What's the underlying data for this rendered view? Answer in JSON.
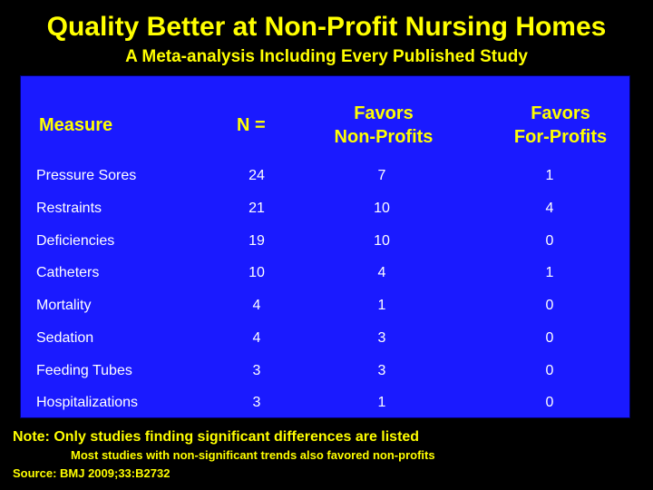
{
  "title": "Quality Better at Non-Profit Nursing Homes",
  "subtitle": "A Meta-analysis Including Every Published Study",
  "table": {
    "headers": {
      "measure": "Measure",
      "n": "N =",
      "non_profits_line1": "Favors",
      "non_profits_line2": "Non-Profits",
      "for_profits_line1": "Favors",
      "for_profits_line2": "For-Profits"
    },
    "rows": [
      {
        "measure": "Pressure Sores",
        "n": "24",
        "non_profits": "7",
        "for_profits": "1"
      },
      {
        "measure": "Restraints",
        "n": "21",
        "non_profits": "10",
        "for_profits": "4"
      },
      {
        "measure": "Deficiencies",
        "n": "19",
        "non_profits": "10",
        "for_profits": "0"
      },
      {
        "measure": "Catheters",
        "n": "10",
        "non_profits": "4",
        "for_profits": "1"
      },
      {
        "measure": "Mortality",
        "n": "4",
        "non_profits": "1",
        "for_profits": "0"
      },
      {
        "measure": "Sedation",
        "n": "4",
        "non_profits": "3",
        "for_profits": "0"
      },
      {
        "measure": "Feeding Tubes",
        "n": "3",
        "non_profits": "3",
        "for_profits": "0"
      },
      {
        "measure": "Hospitalizations",
        "n": "3",
        "non_profits": "1",
        "for_profits": "0"
      }
    ]
  },
  "note": "Note: Only studies finding significant differences are listed",
  "note_sub": "Most studies with non-significant trends also favored non-profits",
  "source": "Source: BMJ 2009;33:B2732",
  "colors": {
    "background": "#000000",
    "panel": "#1a1aff",
    "heading_text": "#ffff00",
    "body_text": "#ffffff"
  }
}
